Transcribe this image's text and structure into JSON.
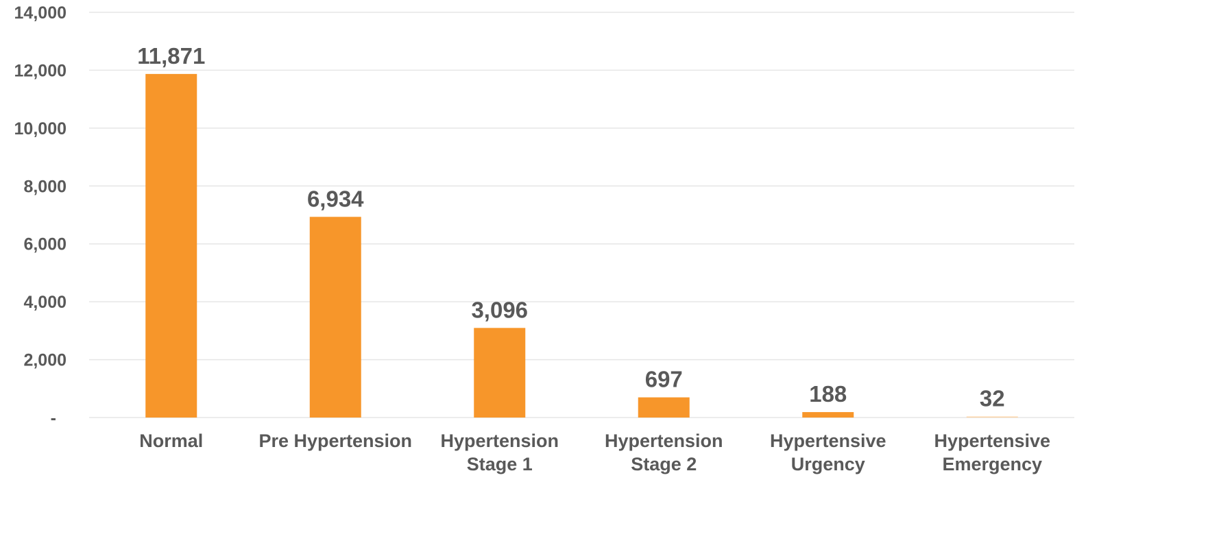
{
  "chart_data": {
    "type": "bar",
    "title": "",
    "xlabel": "",
    "ylabel": "",
    "categories": [
      [
        "Normal"
      ],
      [
        "Pre Hypertension"
      ],
      [
        "Hypertension",
        "Stage 1"
      ],
      [
        "Hypertension",
        "Stage 2"
      ],
      [
        "Hypertensive",
        "Urgency"
      ],
      [
        "Hypertensive",
        "Emergency"
      ]
    ],
    "values": [
      11871,
      6934,
      3096,
      697,
      188,
      32
    ],
    "data_labels": [
      "11,871",
      "6,934",
      "3,096",
      "697",
      "188",
      "32"
    ],
    "ylim": [
      0,
      14000
    ],
    "y_ticks": [
      0,
      2000,
      4000,
      6000,
      8000,
      10000,
      12000,
      14000
    ],
    "y_tick_labels": [
      "-",
      "2,000",
      "4,000",
      "6,000",
      "8,000",
      "10,000",
      "12,000",
      "14,000"
    ],
    "grid": true,
    "legend": "none",
    "colors": {
      "bar": "#F7962A",
      "last_bar": "#FBD3A6",
      "grid": "#E6E6E6",
      "text": "#595959"
    }
  }
}
